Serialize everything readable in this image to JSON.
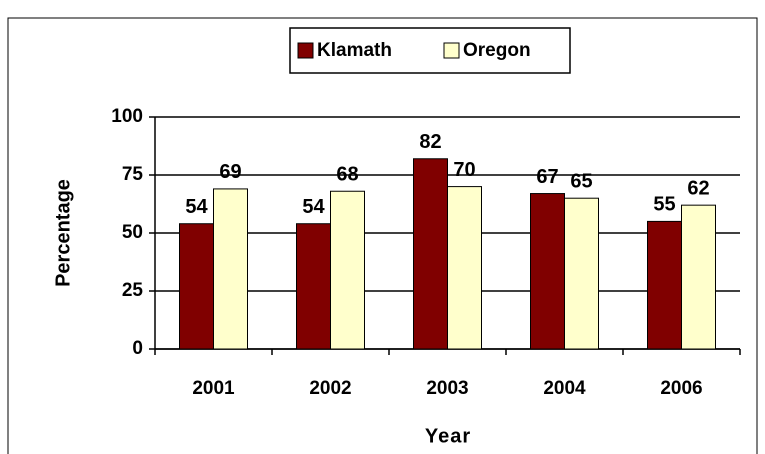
{
  "chart_data": {
    "type": "bar",
    "x_label": "Year",
    "y_label": "Percentage",
    "categories": [
      "2001",
      "2002",
      "2003",
      "2004",
      "2006"
    ],
    "series": [
      {
        "name": "Klamath",
        "color": "#800000",
        "values": [
          54,
          54,
          82,
          67,
          55
        ]
      },
      {
        "name": "Oregon",
        "color": "#ffffcc",
        "values": [
          69,
          68,
          70,
          65,
          62
        ]
      }
    ],
    "ylim": [
      0,
      100
    ],
    "yticks": [
      0,
      25,
      50,
      75,
      100
    ],
    "grid": true,
    "legend": "top"
  }
}
